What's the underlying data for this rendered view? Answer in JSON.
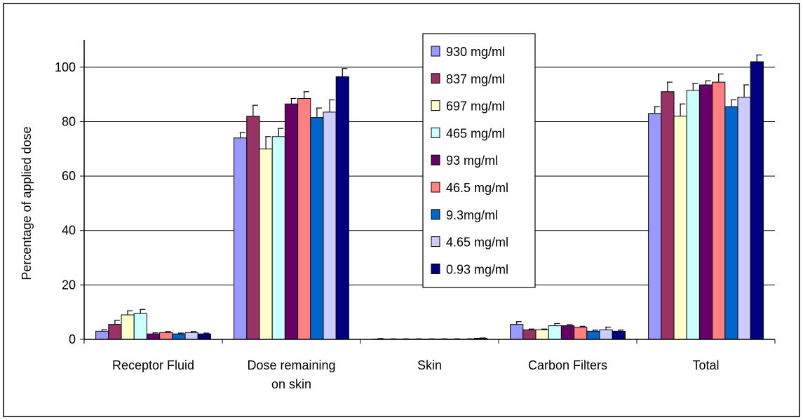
{
  "chart_data": {
    "type": "bar",
    "ylabel": "Percentage of applied dose",
    "ylim": [
      0,
      110
    ],
    "yticks": [
      0,
      20,
      40,
      60,
      80,
      100
    ],
    "grid": true,
    "legend_position": "center",
    "categories": [
      "Receptor Fluid",
      "Dose remaining on skin",
      "Skin",
      "Carbon Filters",
      "Total"
    ],
    "category_lines": [
      [
        "Receptor Fluid"
      ],
      [
        "Dose remaining",
        "on skin"
      ],
      [
        "Skin"
      ],
      [
        "Carbon Filters"
      ],
      [
        "Total"
      ]
    ],
    "series": [
      {
        "name": "930 mg/ml",
        "color": "#9999FF",
        "values": [
          3.0,
          74.0,
          0.1,
          5.5,
          83.0
        ],
        "errors": [
          0.5,
          2.0,
          0.2,
          1.0,
          2.5
        ]
      },
      {
        "name": "837 mg/ml",
        "color": "#993366",
        "values": [
          5.5,
          82.0,
          0.1,
          3.5,
          91.0
        ],
        "errors": [
          1.5,
          4.0,
          0.1,
          0.3,
          3.5
        ]
      },
      {
        "name": "697 mg/ml",
        "color": "#FFFFCC",
        "values": [
          9.0,
          70.0,
          0.1,
          3.5,
          82.0
        ],
        "errors": [
          1.5,
          4.5,
          0.1,
          0.3,
          4.5
        ]
      },
      {
        "name": "465 mg/ml",
        "color": "#CCFFFF",
        "values": [
          9.5,
          74.5,
          0.1,
          5.0,
          91.5
        ],
        "errors": [
          1.5,
          3.0,
          0.1,
          0.8,
          2.5
        ]
      },
      {
        "name": "93 mg/ml",
        "color": "#660066",
        "values": [
          2.0,
          86.5,
          0.1,
          5.0,
          93.5
        ],
        "errors": [
          0.4,
          2.0,
          0.1,
          0.4,
          1.5
        ]
      },
      {
        "name": "46.5 mg/ml",
        "color": "#FF8080",
        "values": [
          2.5,
          88.5,
          0.1,
          4.5,
          94.5
        ],
        "errors": [
          0.4,
          2.5,
          0.1,
          0.3,
          3.0
        ]
      },
      {
        "name": "9.3mg/ml",
        "color": "#0066CC",
        "values": [
          2.0,
          81.5,
          0.1,
          3.0,
          85.5
        ],
        "errors": [
          0.3,
          3.5,
          0.1,
          0.4,
          2.5
        ]
      },
      {
        "name": "4.65 mg/ml",
        "color": "#CCCCFF",
        "values": [
          2.5,
          83.5,
          0.1,
          3.5,
          89.0
        ],
        "errors": [
          0.4,
          4.5,
          0.1,
          1.0,
          4.5
        ]
      },
      {
        "name": "0.93 mg/ml",
        "color": "#000080",
        "values": [
          2.0,
          96.5,
          0.4,
          3.0,
          102.0
        ],
        "errors": [
          0.3,
          3.0,
          0.1,
          0.4,
          2.5
        ]
      }
    ]
  }
}
